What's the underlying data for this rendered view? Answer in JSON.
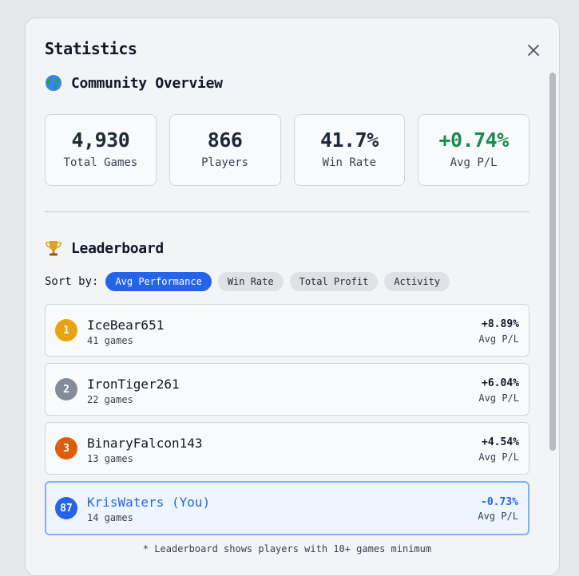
{
  "modal": {
    "title": "Statistics"
  },
  "overview": {
    "title": "Community Overview",
    "icon": "globe-icon",
    "stats": [
      {
        "value": "4,930",
        "label": "Total Games"
      },
      {
        "value": "866",
        "label": "Players"
      },
      {
        "value": "41.7%",
        "label": "Win Rate"
      },
      {
        "value": "+0.74%",
        "label": "Avg P/L"
      }
    ]
  },
  "leaderboard": {
    "title": "Leaderboard",
    "icon": "trophy-icon",
    "sort_label": "Sort by:",
    "sort_options": [
      "Avg Performance",
      "Win Rate",
      "Total Profit",
      "Activity"
    ],
    "active_sort": "Avg Performance",
    "rows": [
      {
        "rank": "1",
        "name": "IceBear651",
        "games": "41 games",
        "pl": "+8.89%",
        "pl_label": "Avg P/L",
        "rank_color": "#eaa20f"
      },
      {
        "rank": "2",
        "name": "IronTiger261",
        "games": "22 games",
        "pl": "+6.04%",
        "pl_label": "Avg P/L",
        "rank_color": "#858c97"
      },
      {
        "rank": "3",
        "name": "BinaryFalcon143",
        "games": "13 games",
        "pl": "+4.54%",
        "pl_label": "Avg P/L",
        "rank_color": "#dc5d0e"
      },
      {
        "rank": "87",
        "name": "KrisWaters (You)",
        "games": "14 games",
        "pl": "-0.73%",
        "pl_label": "Avg P/L",
        "rank_color": "#2563eb"
      }
    ],
    "footnote": "* Leaderboard shows players with 10+ games minimum"
  },
  "colors": {
    "accent": "#2563eb",
    "positive": "#1a8a50",
    "you_highlight": "#7fb2f0"
  }
}
